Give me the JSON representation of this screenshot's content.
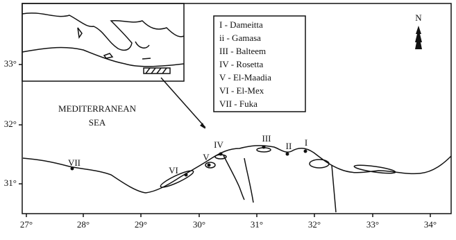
{
  "map": {
    "x_ticks": [
      "27°",
      "28°",
      "29°",
      "30°",
      "31°",
      "32°",
      "33°",
      "34°"
    ],
    "y_ticks": [
      "33°",
      "32°",
      "31°"
    ],
    "sea_label": [
      "MEDITERRANEAN",
      "SEA"
    ],
    "north": "N",
    "legend": [
      "I - Dameitta",
      "ii - Gamasa",
      "III - Balteem",
      "IV - Rosetta",
      "V - El-Maadia",
      "VI - El-Mex",
      "VII - Fuka"
    ],
    "stations": [
      "VII",
      "VI",
      "V",
      "IV",
      "III",
      "II",
      "I"
    ]
  }
}
